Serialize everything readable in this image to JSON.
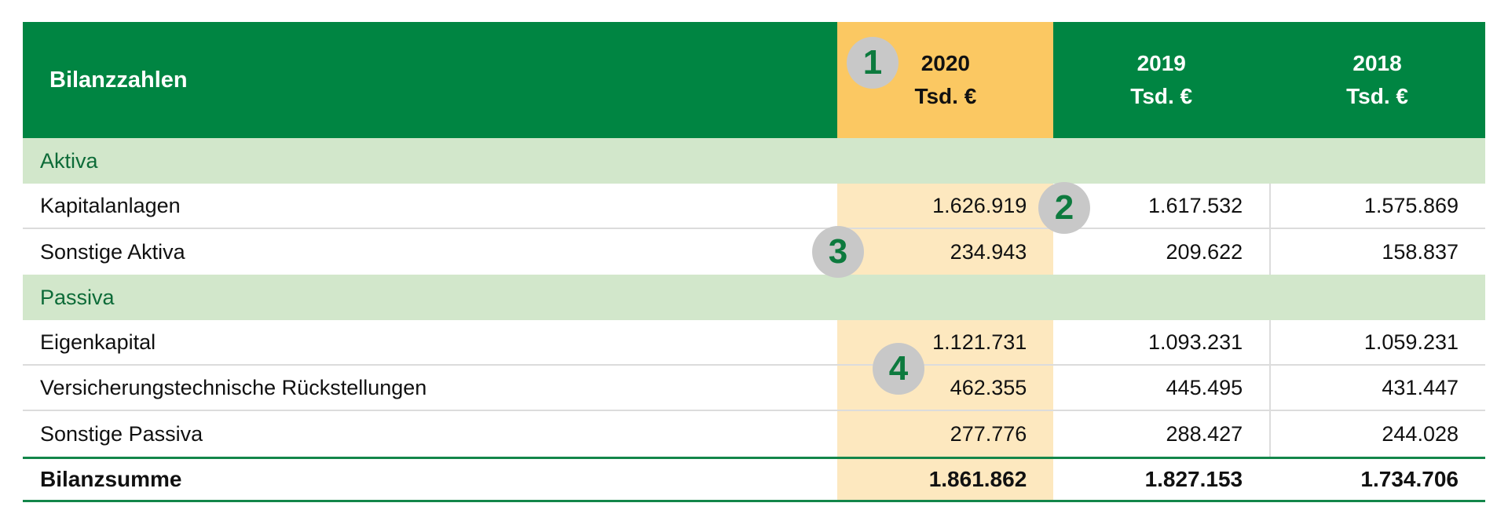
{
  "table": {
    "header": {
      "label": "Bilanzzahlen",
      "columns": [
        {
          "year": "2020",
          "unit": "Tsd. €"
        },
        {
          "year": "2019",
          "unit": "Tsd. €"
        },
        {
          "year": "2018",
          "unit": "Tsd. €"
        }
      ]
    },
    "sections": [
      {
        "title": "Aktiva",
        "rows": [
          {
            "label": "Kapitalanlagen",
            "values": [
              "1.626.919",
              "1.617.532",
              "1.575.869"
            ]
          },
          {
            "label": "Sonstige Aktiva",
            "values": [
              "234.943",
              "209.622",
              "158.837"
            ]
          }
        ]
      },
      {
        "title": "Passiva",
        "rows": [
          {
            "label": "Eigenkapital",
            "values": [
              "1.121.731",
              "1.093.231",
              "1.059.231"
            ]
          },
          {
            "label": "Versicherungstechnische Rückstellungen",
            "values": [
              "462.355",
              "445.495",
              "431.447"
            ]
          },
          {
            "label": "Sonstige Passiva",
            "values": [
              "277.776",
              "288.427",
              "244.028"
            ]
          }
        ]
      }
    ],
    "total": {
      "label": "Bilanzsumme",
      "values": [
        "1.861.862",
        "1.827.153",
        "1.734.706"
      ]
    }
  },
  "markers": [
    "1",
    "2",
    "3",
    "4"
  ],
  "colors": {
    "header_green": "#008542",
    "highlight_header": "#fbc862",
    "highlight_cell": "#fde8bf",
    "section_bg": "#d2e7cb",
    "section_text": "#0d6b38",
    "marker_bg": "#c8c8c8",
    "marker_text": "#0d7a3e"
  }
}
